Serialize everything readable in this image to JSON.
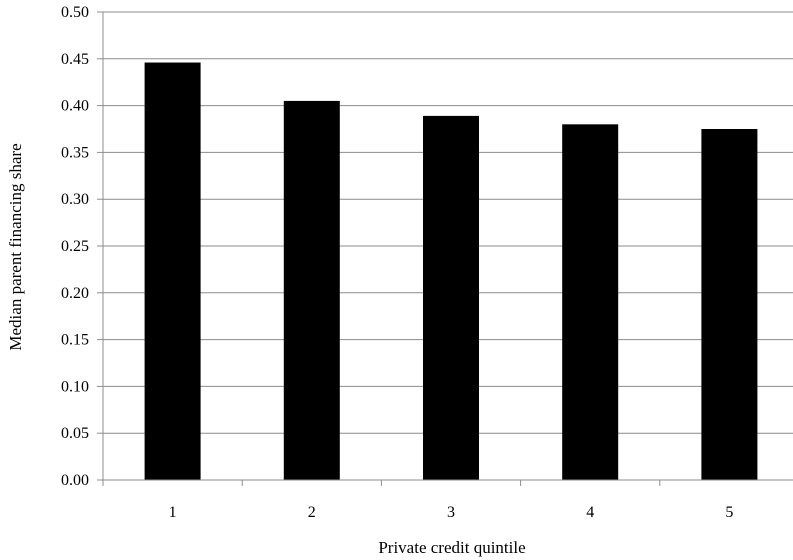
{
  "chart_data": {
    "type": "bar",
    "title": "",
    "xlabel": "Private credit quintile",
    "ylabel": "Median parent financing share",
    "categories": [
      "1",
      "2",
      "3",
      "4",
      "5"
    ],
    "values": [
      0.446,
      0.405,
      0.389,
      0.38,
      0.375
    ],
    "ylim": [
      0.0,
      0.5
    ],
    "yticks": [
      "0.00",
      "0.05",
      "0.10",
      "0.15",
      "0.20",
      "0.25",
      "0.30",
      "0.35",
      "0.40",
      "0.45",
      "0.50"
    ],
    "grid": true,
    "legend": "none",
    "colors": {
      "bar": "#000000",
      "grid": "#8c8c8c",
      "axis": "#8c8c8c",
      "text": "#000000"
    }
  }
}
